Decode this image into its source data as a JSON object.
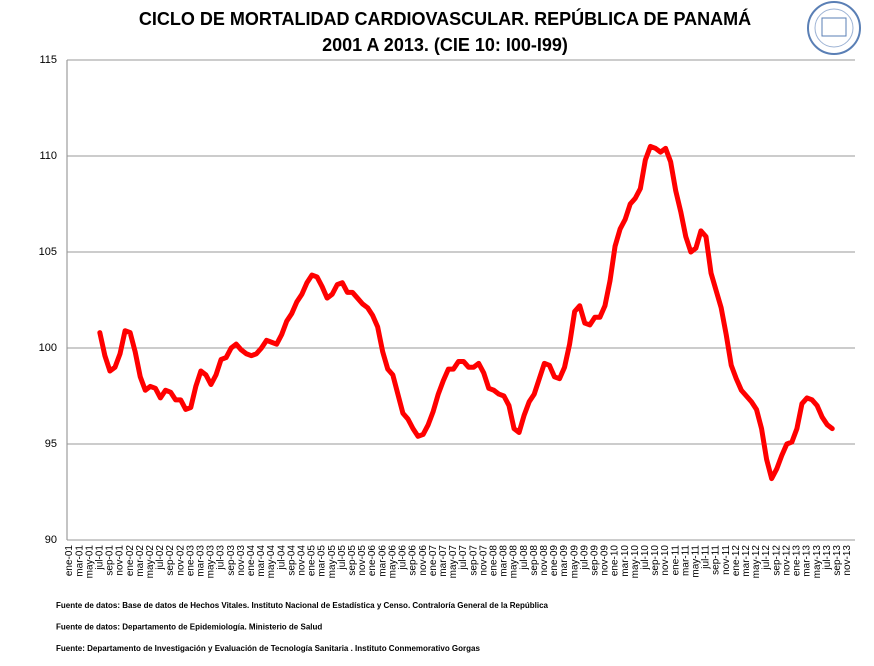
{
  "chart_data": {
    "type": "line",
    "title": "CICLO DE MORTALIDAD CARDIOVASCULAR. REPÚBLICA DE PANAMÁ",
    "subtitle": "2001 A 2013. (CIE 10: I00-I99)",
    "categories": [
      "ene-01",
      null,
      "mar-01",
      null,
      "may-01",
      null,
      "jul-01",
      null,
      "sep-01",
      null,
      "nov-01",
      null,
      "ene-02",
      null,
      "mar-02",
      null,
      "may-02",
      null,
      "jul-02",
      null,
      "sep-02",
      null,
      "nov-02",
      null,
      "ene-03",
      null,
      "mar-03",
      null,
      "may-03",
      null,
      "jul-03",
      null,
      "sep-03",
      null,
      "nov-03",
      null,
      "ene-04",
      null,
      "mar-04",
      null,
      "may-04",
      null,
      "jul-04",
      null,
      "sep-04",
      null,
      "nov-04",
      null,
      "ene-05",
      null,
      "mar-05",
      null,
      "may-05",
      null,
      "jul-05",
      null,
      "sep-05",
      null,
      "nov-05",
      null,
      "ene-06",
      null,
      "mar-06",
      null,
      "may-06",
      null,
      "jul-06",
      null,
      "sep-06",
      null,
      "nov-06",
      null,
      "ene-07",
      null,
      "mar-07",
      null,
      "may-07",
      null,
      "jul-07",
      null,
      "sep-07",
      null,
      "nov-07",
      null,
      "ene-08",
      null,
      "mar-08",
      null,
      "may-08",
      null,
      "jul-08",
      null,
      "sep-08",
      null,
      "nov-08",
      null,
      "ene-09",
      null,
      "mar-09",
      null,
      "may-09",
      null,
      "jul-09",
      null,
      "sep-09",
      null,
      "nov-09",
      null,
      "ene-10",
      null,
      "mar-10",
      null,
      "may-10",
      null,
      "jul-10",
      null,
      "sep-10",
      null,
      "nov-10",
      null,
      "ene-11",
      null,
      "mar-11",
      null,
      "may-11",
      null,
      "jul-11",
      null,
      "sep-11",
      null,
      "nov-11",
      null,
      "ene-12",
      null,
      "mar-12",
      null,
      "may-12",
      null,
      "jul-12",
      null,
      "sep-12",
      null,
      "nov-12",
      null,
      "ene-13",
      null,
      "mar-13",
      null,
      "may-13",
      null,
      "jul-13",
      null,
      "sep-13",
      null,
      "nov-13",
      null
    ],
    "values": [
      null,
      null,
      null,
      null,
      null,
      null,
      100.8,
      99.6,
      98.8,
      99.0,
      99.7,
      100.9,
      100.8,
      99.8,
      98.5,
      97.8,
      98.0,
      97.9,
      97.4,
      97.8,
      97.7,
      97.3,
      97.3,
      96.8,
      96.9,
      98.0,
      98.8,
      98.6,
      98.1,
      98.6,
      99.4,
      99.5,
      100.0,
      100.2,
      99.9,
      99.7,
      99.6,
      99.7,
      100.0,
      100.4,
      100.3,
      100.2,
      100.7,
      101.4,
      101.8,
      102.4,
      102.8,
      103.4,
      103.8,
      103.7,
      103.2,
      102.6,
      102.8,
      103.3,
      103.4,
      102.9,
      102.9,
      102.6,
      102.3,
      102.1,
      101.7,
      101.1,
      99.8,
      98.9,
      98.6,
      97.6,
      96.6,
      96.3,
      95.8,
      95.4,
      95.5,
      96.0,
      96.7,
      97.6,
      98.3,
      98.9,
      98.9,
      99.3,
      99.3,
      99.0,
      99.0,
      99.2,
      98.7,
      97.9,
      97.8,
      97.6,
      97.5,
      97.0,
      95.8,
      95.6,
      96.5,
      97.2,
      97.6,
      98.4,
      99.2,
      99.1,
      98.5,
      98.4,
      99.0,
      100.2,
      101.9,
      102.2,
      101.3,
      101.2,
      101.6,
      101.6,
      102.2,
      103.5,
      105.3,
      106.2,
      106.7,
      107.5,
      107.8,
      108.3,
      109.8,
      110.5,
      110.4,
      110.2,
      110.4,
      109.7,
      108.2,
      107.1,
      105.8,
      105.0,
      105.2,
      106.1,
      105.8,
      103.9,
      103.0,
      102.1,
      100.7,
      99.1,
      98.4,
      97.8,
      97.5,
      97.2,
      96.8,
      95.8,
      94.2,
      93.2,
      93.7,
      94.4,
      95.0,
      95.1,
      95.8,
      97.1,
      97.4,
      97.3,
      97.0,
      96.4,
      96.0,
      95.8,
      null,
      null,
      null,
      null
    ],
    "color": "#ff0000",
    "ylim": [
      90,
      115
    ],
    "yticks": [
      90,
      95,
      100,
      105,
      110,
      115
    ],
    "grid": true,
    "notes": [
      "Fuente de datos:  Base  de  datos de Hechos Vitales. Instituto Nacional  de Estadística  y Censo. Contraloría General de la República",
      "Fuente de datos:  Departamento de Epidemiología.  Ministerio de Salud",
      "Fuente: Departamento de Investigación  y  Evaluación de Tecnología Sanitaria  . Instituto  Conmemorativo Gorgas"
    ]
  }
}
